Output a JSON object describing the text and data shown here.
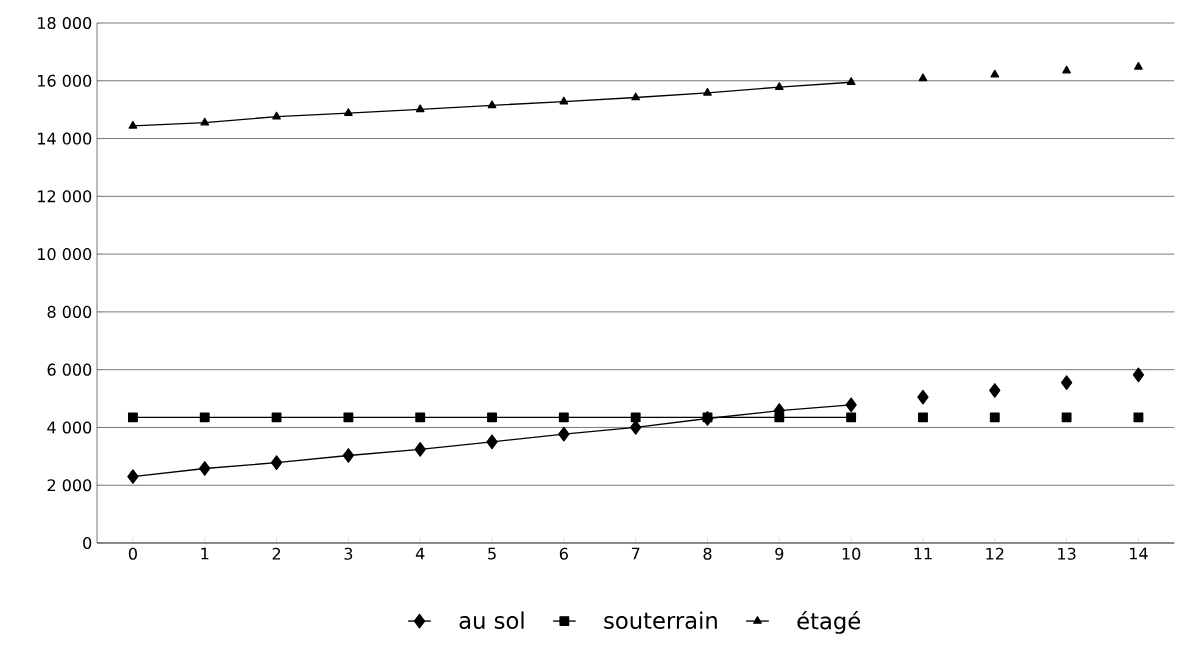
{
  "chart_data": {
    "type": "line",
    "categories": [
      "0",
      "1",
      "2",
      "3",
      "4",
      "5",
      "6",
      "7",
      "8",
      "9",
      "10",
      "11",
      "12",
      "13",
      "14"
    ],
    "ylim": [
      0,
      18000
    ],
    "yticks": [
      {
        "value": 0,
        "label": "0"
      },
      {
        "value": 2000,
        "label": "2 000"
      },
      {
        "value": 4000,
        "label": "4 000"
      },
      {
        "value": 6000,
        "label": "6 000"
      },
      {
        "value": 8000,
        "label": "8 000"
      },
      {
        "value": 10000,
        "label": "10 000"
      },
      {
        "value": 12000,
        "label": "12 000"
      },
      {
        "value": 14000,
        "label": "14 000"
      },
      {
        "value": 16000,
        "label": "16 000"
      },
      {
        "value": 18000,
        "label": "18 000"
      }
    ],
    "grid": "y",
    "legend": "bottom",
    "series": [
      {
        "name": "au sol",
        "color": "#000000",
        "marker": "diamond",
        "values": [
          2300,
          2580,
          2780,
          3030,
          3240,
          3500,
          3770,
          4000,
          4310,
          4580,
          4780,
          null,
          null,
          null,
          null
        ]
      },
      {
        "name": "souterrain",
        "color": "#000000",
        "marker": "square",
        "values": [
          4350,
          4350,
          4350,
          4350,
          4350,
          4350,
          4350,
          4350,
          4350,
          4350,
          4350,
          null,
          null,
          null,
          null
        ]
      },
      {
        "name": "étagé",
        "color": "#000000",
        "marker": "triangle",
        "values": [
          14440,
          14550,
          14760,
          14880,
          15010,
          15150,
          15280,
          15420,
          15580,
          15780,
          15950,
          null,
          null,
          null,
          null
        ]
      },
      {
        "type": "scatter",
        "color": "#000000",
        "marker": "diamond",
        "values": [
          null,
          null,
          null,
          null,
          null,
          null,
          null,
          null,
          null,
          null,
          null,
          5050,
          5280,
          5550,
          5820
        ]
      },
      {
        "type": "scatter",
        "color": "#000000",
        "marker": "square",
        "values": [
          null,
          null,
          null,
          null,
          null,
          null,
          null,
          null,
          null,
          null,
          null,
          4350,
          4350,
          4350,
          4350
        ]
      },
      {
        "type": "scatter",
        "color": "#000000",
        "marker": "triangle",
        "values": [
          null,
          null,
          null,
          null,
          null,
          null,
          null,
          null,
          null,
          null,
          null,
          16080,
          16210,
          16350,
          16480
        ]
      }
    ]
  }
}
